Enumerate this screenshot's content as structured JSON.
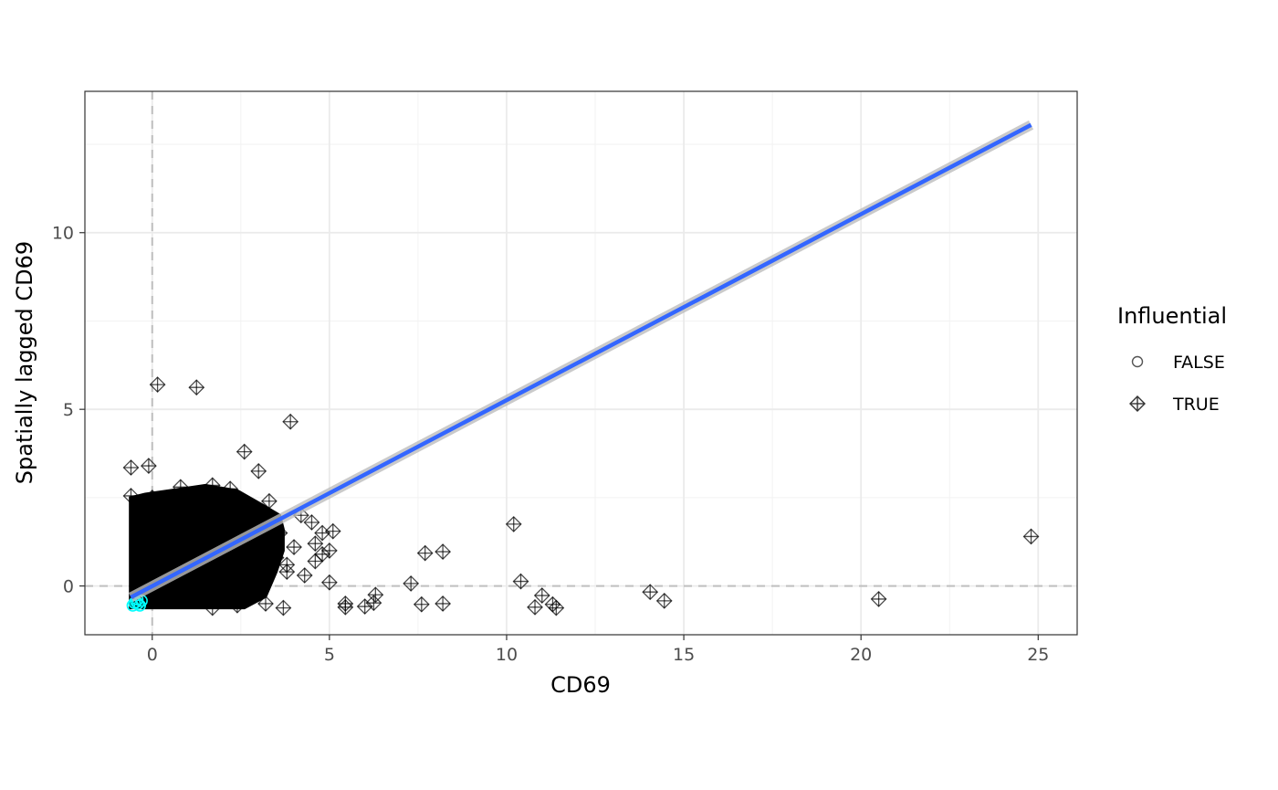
{
  "chart_data": {
    "type": "scatter",
    "title": "",
    "xlabel": "CD69",
    "ylabel": "Spatially lagged CD69",
    "xlim": [
      -1.9,
      26.1
    ],
    "ylim": [
      -1.38,
      14.0
    ],
    "x_ticks": [
      0,
      5,
      10,
      15,
      20,
      25
    ],
    "y_ticks": [
      0,
      5,
      10
    ],
    "grid": true,
    "reference_lines": {
      "x": 0,
      "y": 0,
      "style": "dashed"
    },
    "legend": {
      "title": "Influential",
      "placement": "right",
      "entries": [
        {
          "label": "FALSE",
          "shape": "circle"
        },
        {
          "label": "TRUE",
          "shape": "diamond-plus"
        }
      ]
    },
    "regression_line": {
      "x": [
        -0.6,
        24.8
      ],
      "y": [
        -0.32,
        13.05
      ],
      "color": "#3366ff"
    },
    "dense_cloud": [
      [
        -0.62,
        -0.62
      ],
      [
        -0.62,
        2.5
      ],
      [
        -0.2,
        2.6
      ],
      [
        0.5,
        2.7
      ],
      [
        1.5,
        2.85
      ],
      [
        2.4,
        2.7
      ],
      [
        3.1,
        2.3
      ],
      [
        3.6,
        2.0
      ],
      [
        3.7,
        1.6
      ],
      [
        3.7,
        1.0
      ],
      [
        3.5,
        0.4
      ],
      [
        3.2,
        -0.3
      ],
      [
        2.6,
        -0.62
      ],
      [
        1.5,
        -0.62
      ],
      [
        0.5,
        -0.62
      ]
    ],
    "series": [
      {
        "name": "TRUE",
        "points": [
          [
            0.15,
            5.7
          ],
          [
            1.25,
            5.62
          ],
          [
            3.9,
            4.65
          ],
          [
            2.6,
            3.8
          ],
          [
            -0.6,
            3.35
          ],
          [
            -0.1,
            3.4
          ],
          [
            3.0,
            3.25
          ],
          [
            1.7,
            2.85
          ],
          [
            0.8,
            2.8
          ],
          [
            2.2,
            2.75
          ],
          [
            3.3,
            2.4
          ],
          [
            -0.6,
            2.55
          ],
          [
            0.0,
            2.5
          ],
          [
            4.2,
            2.0
          ],
          [
            4.5,
            1.8
          ],
          [
            4.8,
            1.5
          ],
          [
            5.1,
            1.55
          ],
          [
            4.6,
            1.2
          ],
          [
            4.8,
            0.9
          ],
          [
            5.0,
            1.0
          ],
          [
            4.6,
            0.7
          ],
          [
            4.3,
            0.3
          ],
          [
            3.8,
            0.4
          ],
          [
            5.0,
            0.1
          ],
          [
            3.5,
            0.8
          ],
          [
            3.8,
            0.6
          ],
          [
            4.0,
            1.1
          ],
          [
            3.6,
            1.5
          ],
          [
            3.2,
            -0.5
          ],
          [
            3.7,
            -0.62
          ],
          [
            2.4,
            -0.55
          ],
          [
            1.7,
            -0.62
          ],
          [
            5.45,
            -0.5
          ],
          [
            5.45,
            -0.6
          ],
          [
            6.0,
            -0.58
          ],
          [
            6.25,
            -0.48
          ],
          [
            6.3,
            -0.25
          ],
          [
            7.3,
            0.07
          ],
          [
            7.6,
            -0.52
          ],
          [
            7.7,
            0.93
          ],
          [
            8.2,
            0.97
          ],
          [
            8.2,
            -0.5
          ],
          [
            10.2,
            1.75
          ],
          [
            10.4,
            0.13
          ],
          [
            10.8,
            -0.6
          ],
          [
            11.0,
            -0.27
          ],
          [
            11.3,
            -0.52
          ],
          [
            11.4,
            -0.62
          ],
          [
            14.05,
            -0.17
          ],
          [
            14.45,
            -0.42
          ],
          [
            20.5,
            -0.37
          ],
          [
            24.8,
            1.4
          ]
        ]
      },
      {
        "name": "FALSE",
        "points": [
          [
            -0.45,
            -0.45
          ],
          [
            -0.4,
            -0.5
          ],
          [
            -0.35,
            -0.55
          ],
          [
            -0.5,
            -0.48
          ],
          [
            -0.3,
            -0.42
          ],
          [
            -0.42,
            -0.38
          ],
          [
            -0.55,
            -0.55
          ]
        ]
      }
    ]
  }
}
